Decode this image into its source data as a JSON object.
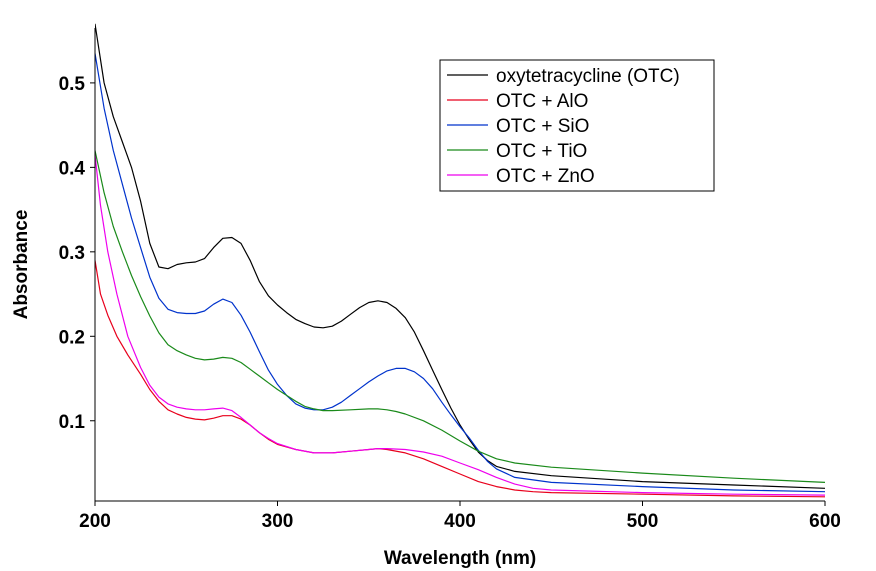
{
  "chart_data": {
    "type": "line",
    "title": "",
    "xlabel": "Wavelength (nm)",
    "ylabel": "Absorbance",
    "xlim": [
      200,
      600
    ],
    "ylim": [
      0.005,
      0.565
    ],
    "xticks": [
      200,
      300,
      400,
      500,
      600
    ],
    "yticks": [
      0.1,
      0.2,
      0.3,
      0.4,
      0.5
    ],
    "legend_position": "top-right",
    "series": [
      {
        "name": "oxytetracycline (OTC)",
        "color": "#000000",
        "points": [
          [
            200,
            0.57
          ],
          [
            205,
            0.5
          ],
          [
            210,
            0.46
          ],
          [
            215,
            0.43
          ],
          [
            220,
            0.4
          ],
          [
            225,
            0.36
          ],
          [
            230,
            0.31
          ],
          [
            235,
            0.282
          ],
          [
            240,
            0.28
          ],
          [
            245,
            0.285
          ],
          [
            250,
            0.287
          ],
          [
            255,
            0.288
          ],
          [
            260,
            0.292
          ],
          [
            265,
            0.305
          ],
          [
            270,
            0.316
          ],
          [
            275,
            0.317
          ],
          [
            280,
            0.31
          ],
          [
            285,
            0.29
          ],
          [
            290,
            0.265
          ],
          [
            295,
            0.248
          ],
          [
            300,
            0.237
          ],
          [
            305,
            0.228
          ],
          [
            310,
            0.22
          ],
          [
            315,
            0.215
          ],
          [
            320,
            0.211
          ],
          [
            325,
            0.21
          ],
          [
            330,
            0.212
          ],
          [
            335,
            0.218
          ],
          [
            340,
            0.226
          ],
          [
            345,
            0.234
          ],
          [
            350,
            0.24
          ],
          [
            355,
            0.242
          ],
          [
            360,
            0.24
          ],
          [
            365,
            0.233
          ],
          [
            370,
            0.222
          ],
          [
            375,
            0.205
          ],
          [
            380,
            0.183
          ],
          [
            385,
            0.16
          ],
          [
            390,
            0.137
          ],
          [
            395,
            0.115
          ],
          [
            400,
            0.095
          ],
          [
            405,
            0.078
          ],
          [
            410,
            0.063
          ],
          [
            415,
            0.053
          ],
          [
            420,
            0.046
          ],
          [
            430,
            0.04
          ],
          [
            450,
            0.035
          ],
          [
            500,
            0.028
          ],
          [
            550,
            0.024
          ],
          [
            600,
            0.02
          ]
        ]
      },
      {
        "name": "OTC + AlO",
        "color": "#e8001c",
        "points": [
          [
            200,
            0.29
          ],
          [
            203,
            0.25
          ],
          [
            207,
            0.225
          ],
          [
            212,
            0.2
          ],
          [
            218,
            0.178
          ],
          [
            225,
            0.155
          ],
          [
            230,
            0.137
          ],
          [
            235,
            0.123
          ],
          [
            240,
            0.113
          ],
          [
            245,
            0.108
          ],
          [
            250,
            0.104
          ],
          [
            255,
            0.102
          ],
          [
            260,
            0.101
          ],
          [
            265,
            0.103
          ],
          [
            270,
            0.106
          ],
          [
            275,
            0.106
          ],
          [
            280,
            0.102
          ],
          [
            285,
            0.095
          ],
          [
            290,
            0.086
          ],
          [
            295,
            0.078
          ],
          [
            300,
            0.072
          ],
          [
            310,
            0.066
          ],
          [
            320,
            0.062
          ],
          [
            330,
            0.062
          ],
          [
            340,
            0.064
          ],
          [
            350,
            0.066
          ],
          [
            355,
            0.067
          ],
          [
            360,
            0.066
          ],
          [
            370,
            0.062
          ],
          [
            380,
            0.055
          ],
          [
            390,
            0.046
          ],
          [
            400,
            0.037
          ],
          [
            410,
            0.028
          ],
          [
            420,
            0.022
          ],
          [
            430,
            0.018
          ],
          [
            440,
            0.016
          ],
          [
            450,
            0.015
          ],
          [
            500,
            0.013
          ],
          [
            550,
            0.011
          ],
          [
            600,
            0.01
          ]
        ]
      },
      {
        "name": "OTC + SiO",
        "color": "#0033cc",
        "points": [
          [
            200,
            0.535
          ],
          [
            205,
            0.47
          ],
          [
            210,
            0.42
          ],
          [
            215,
            0.38
          ],
          [
            220,
            0.34
          ],
          [
            225,
            0.305
          ],
          [
            230,
            0.27
          ],
          [
            235,
            0.245
          ],
          [
            240,
            0.232
          ],
          [
            245,
            0.228
          ],
          [
            250,
            0.227
          ],
          [
            255,
            0.227
          ],
          [
            260,
            0.23
          ],
          [
            265,
            0.238
          ],
          [
            270,
            0.244
          ],
          [
            275,
            0.24
          ],
          [
            280,
            0.225
          ],
          [
            285,
            0.205
          ],
          [
            290,
            0.182
          ],
          [
            295,
            0.16
          ],
          [
            300,
            0.143
          ],
          [
            305,
            0.13
          ],
          [
            310,
            0.12
          ],
          [
            315,
            0.115
          ],
          [
            320,
            0.113
          ],
          [
            325,
            0.113
          ],
          [
            330,
            0.116
          ],
          [
            335,
            0.122
          ],
          [
            340,
            0.13
          ],
          [
            345,
            0.138
          ],
          [
            350,
            0.146
          ],
          [
            355,
            0.153
          ],
          [
            360,
            0.159
          ],
          [
            365,
            0.162
          ],
          [
            370,
            0.162
          ],
          [
            375,
            0.158
          ],
          [
            380,
            0.15
          ],
          [
            385,
            0.138
          ],
          [
            390,
            0.122
          ],
          [
            395,
            0.107
          ],
          [
            400,
            0.093
          ],
          [
            405,
            0.08
          ],
          [
            410,
            0.065
          ],
          [
            415,
            0.052
          ],
          [
            420,
            0.043
          ],
          [
            430,
            0.033
          ],
          [
            450,
            0.027
          ],
          [
            500,
            0.022
          ],
          [
            550,
            0.018
          ],
          [
            600,
            0.016
          ]
        ]
      },
      {
        "name": "OTC + TiO",
        "color": "#1a8a1a",
        "points": [
          [
            200,
            0.42
          ],
          [
            205,
            0.37
          ],
          [
            210,
            0.33
          ],
          [
            215,
            0.3
          ],
          [
            220,
            0.272
          ],
          [
            225,
            0.247
          ],
          [
            230,
            0.224
          ],
          [
            235,
            0.204
          ],
          [
            240,
            0.19
          ],
          [
            245,
            0.183
          ],
          [
            250,
            0.178
          ],
          [
            255,
            0.174
          ],
          [
            260,
            0.172
          ],
          [
            265,
            0.173
          ],
          [
            270,
            0.175
          ],
          [
            275,
            0.174
          ],
          [
            280,
            0.169
          ],
          [
            285,
            0.161
          ],
          [
            290,
            0.153
          ],
          [
            295,
            0.145
          ],
          [
            300,
            0.137
          ],
          [
            305,
            0.13
          ],
          [
            310,
            0.123
          ],
          [
            315,
            0.117
          ],
          [
            320,
            0.114
          ],
          [
            325,
            0.112
          ],
          [
            330,
            0.112
          ],
          [
            340,
            0.113
          ],
          [
            350,
            0.114
          ],
          [
            355,
            0.114
          ],
          [
            360,
            0.113
          ],
          [
            365,
            0.111
          ],
          [
            370,
            0.108
          ],
          [
            380,
            0.1
          ],
          [
            390,
            0.089
          ],
          [
            400,
            0.076
          ],
          [
            410,
            0.064
          ],
          [
            420,
            0.055
          ],
          [
            430,
            0.05
          ],
          [
            450,
            0.045
          ],
          [
            500,
            0.038
          ],
          [
            550,
            0.032
          ],
          [
            600,
            0.027
          ]
        ]
      },
      {
        "name": "OTC + ZnO",
        "color": "#ee00ee",
        "points": [
          [
            200,
            0.415
          ],
          [
            203,
            0.355
          ],
          [
            207,
            0.3
          ],
          [
            212,
            0.25
          ],
          [
            218,
            0.2
          ],
          [
            225,
            0.163
          ],
          [
            230,
            0.142
          ],
          [
            235,
            0.128
          ],
          [
            240,
            0.12
          ],
          [
            245,
            0.116
          ],
          [
            250,
            0.114
          ],
          [
            255,
            0.113
          ],
          [
            260,
            0.113
          ],
          [
            265,
            0.114
          ],
          [
            270,
            0.115
          ],
          [
            275,
            0.112
          ],
          [
            280,
            0.104
          ],
          [
            285,
            0.095
          ],
          [
            290,
            0.086
          ],
          [
            295,
            0.079
          ],
          [
            300,
            0.073
          ],
          [
            310,
            0.066
          ],
          [
            320,
            0.062
          ],
          [
            330,
            0.062
          ],
          [
            340,
            0.064
          ],
          [
            350,
            0.066
          ],
          [
            355,
            0.067
          ],
          [
            360,
            0.067
          ],
          [
            370,
            0.066
          ],
          [
            380,
            0.063
          ],
          [
            390,
            0.058
          ],
          [
            400,
            0.05
          ],
          [
            410,
            0.042
          ],
          [
            420,
            0.033
          ],
          [
            430,
            0.025
          ],
          [
            440,
            0.02
          ],
          [
            450,
            0.018
          ],
          [
            500,
            0.015
          ],
          [
            550,
            0.013
          ],
          [
            600,
            0.012
          ]
        ]
      }
    ]
  }
}
